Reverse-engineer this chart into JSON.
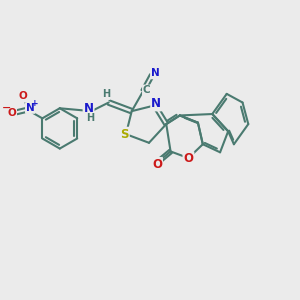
{
  "background_color": "#ebebeb",
  "bond_color": "#4a7a70",
  "bond_width": 1.5,
  "atom_colors": {
    "N": "#1a1acc",
    "O": "#cc1a1a",
    "S": "#aaaa00",
    "C": "#4a7a70",
    "H": "#4a7a70"
  },
  "figsize": [
    3.0,
    3.0
  ],
  "dpi": 100
}
